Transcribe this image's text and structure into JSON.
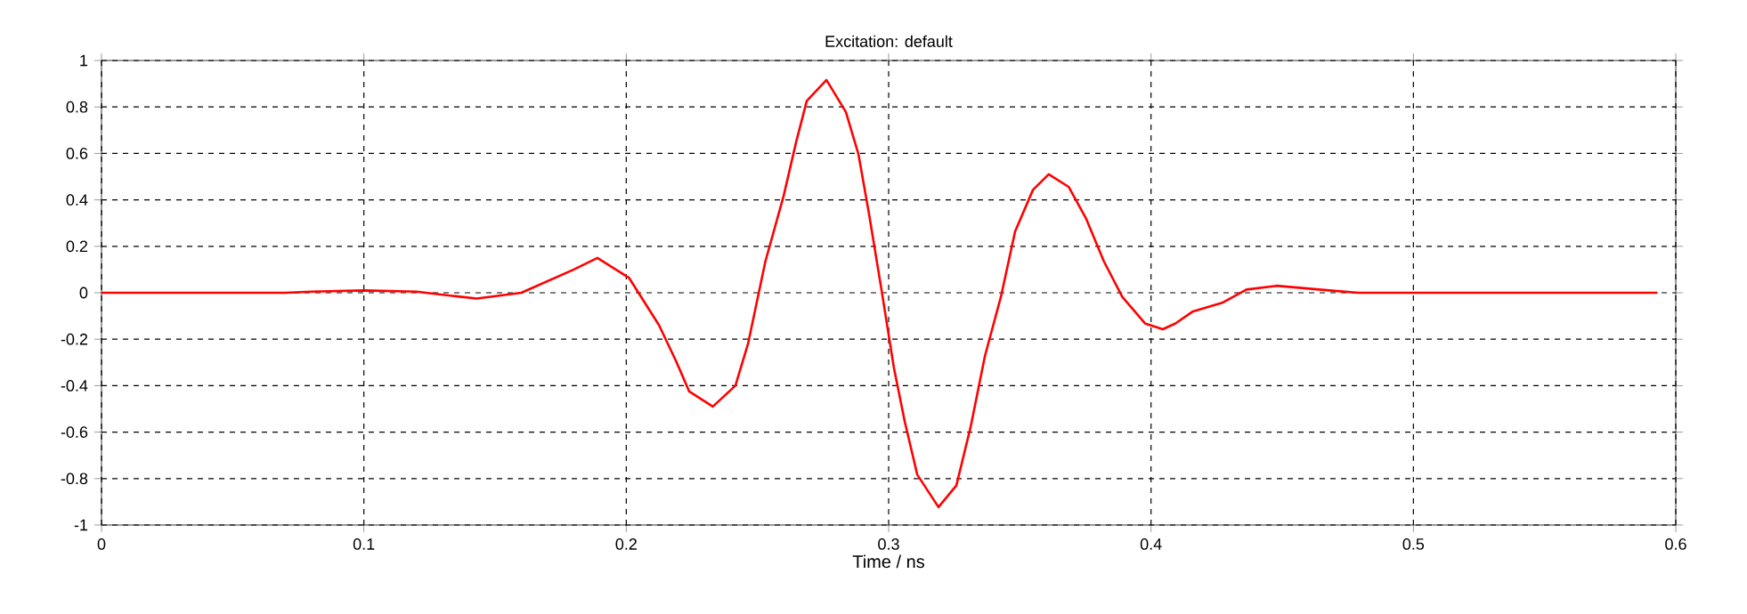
{
  "chart_data": {
    "type": "line",
    "title": "Excitation: default",
    "xlabel": "Time / ns",
    "xlim": [
      0,
      0.6
    ],
    "ylim": [
      -1,
      1
    ],
    "xticks": [
      0,
      0.1,
      0.2,
      0.3,
      0.4,
      0.5,
      0.6
    ],
    "yticks": [
      -1,
      -0.8,
      -0.6,
      -0.4,
      -0.2,
      0,
      0.2,
      0.4,
      0.6,
      0.8,
      1
    ],
    "grid": true,
    "marker": "none",
    "line_style": "solid",
    "series": [
      {
        "color": "#ff0000",
        "x": [
          0,
          0.07,
          0.08,
          0.1,
          0.12,
          0.135,
          0.143,
          0.16,
          0.17,
          0.18,
          0.189,
          0.201,
          0.2125,
          0.219,
          0.224,
          0.233,
          0.2416,
          0.2464,
          0.253,
          0.26,
          0.2647,
          0.2688,
          0.2763,
          0.2837,
          0.2885,
          0.2925,
          0.2973,
          0.302,
          0.3061,
          0.3109,
          0.319,
          0.3258,
          0.3312,
          0.3367,
          0.3428,
          0.3482,
          0.355,
          0.361,
          0.3686,
          0.3753,
          0.382,
          0.389,
          0.3977,
          0.4045,
          0.4093,
          0.416,
          0.4274,
          0.4364,
          0.4478,
          0.468,
          0.479,
          0.593
        ],
        "values": [
          0,
          0,
          0.005,
          0.01,
          0.005,
          -0.015,
          -0.025,
          0,
          0.05,
          0.1,
          0.15,
          0.065,
          -0.14,
          -0.295,
          -0.425,
          -0.49,
          -0.4,
          -0.22,
          0.134,
          0.418,
          0.647,
          0.826,
          0.916,
          0.778,
          0.596,
          0.341,
          0.011,
          -0.323,
          -0.553,
          -0.783,
          -0.923,
          -0.83,
          -0.58,
          -0.272,
          -0.017,
          0.264,
          0.443,
          0.51,
          0.456,
          0.318,
          0.136,
          -0.017,
          -0.132,
          -0.157,
          -0.132,
          -0.08,
          -0.042,
          0.014,
          0.03,
          0.01,
          0,
          0
        ]
      }
    ]
  }
}
